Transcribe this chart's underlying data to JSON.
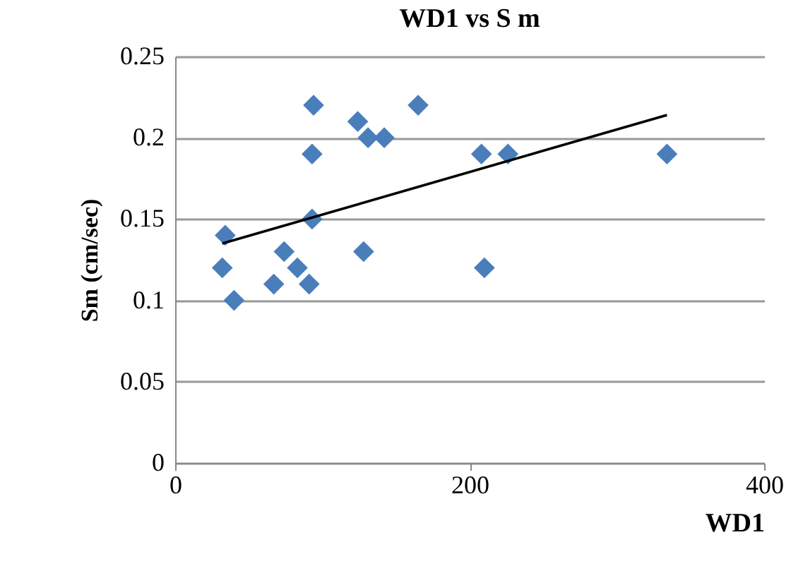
{
  "chart_data": {
    "type": "scatter",
    "title": "WD1 vs S m",
    "xlabel": "WD1",
    "ylabel": "Sm (cm/sec)",
    "xlim": [
      0,
      400
    ],
    "xticks": [
      0,
      200,
      400
    ],
    "ylim": [
      0,
      0.25
    ],
    "yticks": [
      0,
      0.05,
      {
        "value": 0.1,
        "label": "0.1"
      },
      0.15,
      {
        "value": 0.2,
        "label": "0.2"
      },
      0.25
    ],
    "grid": "y",
    "marker": "diamond",
    "series": [
      {
        "color": "#4a7ebb",
        "x": [
          94,
          124,
          131,
          142,
          165,
          93,
          93,
          34,
          32,
          40,
          74,
          83,
          67,
          91,
          128,
          208,
          226,
          334,
          210
        ],
        "values": [
          0.22,
          0.21,
          0.2,
          0.2,
          0.22,
          0.19,
          0.15,
          0.14,
          0.12,
          0.1,
          0.13,
          0.12,
          0.11,
          0.11,
          0.13,
          0.19,
          0.19,
          0.19,
          0.12
        ]
      },
      {
        "type": "line",
        "marker": "none",
        "color": "#000000",
        "x": [
          32,
          334
        ],
        "values": [
          0.135,
          0.214
        ]
      }
    ]
  }
}
